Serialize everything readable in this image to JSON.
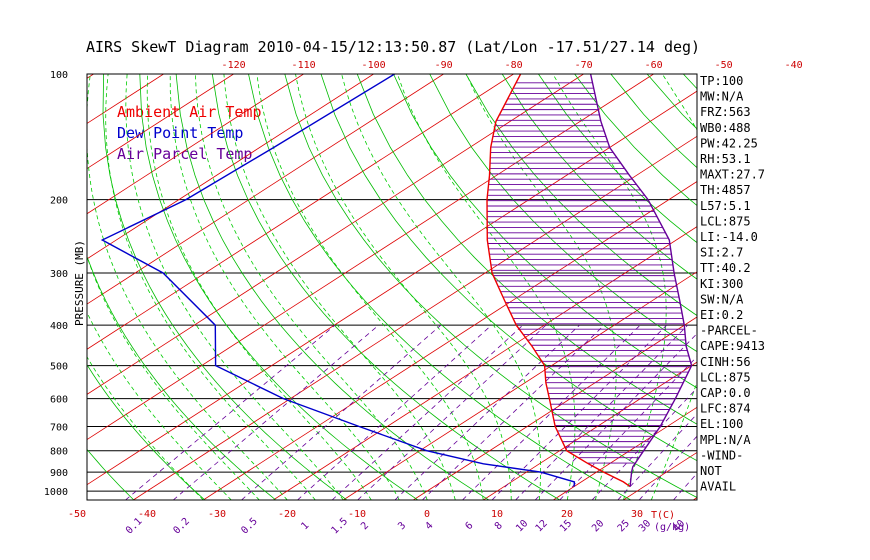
{
  "title": "AIRS SkewT Diagram 2010-04-15/12:13:50.87 (Lat/Lon -17.51/27.14 deg)",
  "ylabel": "PRESSURE (MB)",
  "legend": [
    {
      "label": "Ambient Air Temp",
      "color": "#ee0000"
    },
    {
      "label": "Dew Point Temp",
      "color": "#0000cc"
    },
    {
      "label": "Air Parcel Temp",
      "color": "#660099"
    }
  ],
  "indices": [
    "TP:100",
    "MW:N/A",
    "FRZ:563",
    "WB0:488",
    "PW:42.25",
    "RH:53.1",
    "MAXT:27.7",
    "TH:4857",
    "L57:5.1",
    "LCL:875",
    "LI:-14.0",
    "SI:2.7",
    "TT:40.2",
    "KI:300",
    "SW:N/A",
    "EI:0.2",
    "-PARCEL-",
    "CAPE:9413",
    "CINH:56",
    "LCL:875",
    "CAP:0.0",
    "LFC:874",
    "EL:100",
    "MPL:N/A",
    "-WIND-",
    "NOT",
    "AVAIL"
  ],
  "colors": {
    "temp": "#ee0000",
    "dew": "#0000cc",
    "parcel": "#660099",
    "isotherm": "#dd0000",
    "dryadiabat": "#00bb00",
    "moistadiabat": "#00cc00",
    "mixratio": "#660099",
    "isobar": "#000000"
  },
  "chart_data": {
    "type": "line",
    "title": "AIRS SkewT Diagram 2010-04-15/12:13:50.87 (Lat/Lon -17.51/27.14 deg)",
    "ylabel": "PRESSURE (MB)",
    "xlabel": "T(C)",
    "mixing_ratio_label": "(g/kg)",
    "y_scale": "log",
    "ylim": [
      1050,
      100
    ],
    "pressure_ticks": [
      "100",
      "200",
      "300",
      "400",
      "500",
      "600",
      "700",
      "800",
      "900",
      "1000"
    ],
    "bottom_temp_ticks": [
      "-50",
      "-40",
      "-30",
      "-20",
      "-10",
      "0",
      "10",
      "20",
      "30"
    ],
    "top_temp_ticks": [
      "-120",
      "-110",
      "-100",
      "-90",
      "-80",
      "-70",
      "-60",
      "-50",
      "-40"
    ],
    "mixing_ratio_ticks": [
      "0.1",
      "0.2",
      "0.5",
      "1",
      "1.5",
      "2",
      "3",
      "4",
      "6",
      "8",
      "10",
      "12",
      "15",
      "20",
      "25",
      "30",
      "40"
    ],
    "mixing_ratio_values": [
      0.1,
      0.2,
      0.5,
      1,
      1.5,
      2,
      3,
      4,
      6,
      8,
      10,
      12,
      15,
      20,
      25,
      30,
      40
    ],
    "series": [
      {
        "name": "Ambient Air Temp",
        "points": [
          {
            "p": 100,
            "t": -79
          },
          {
            "p": 130,
            "t": -72
          },
          {
            "p": 150,
            "t": -67
          },
          {
            "p": 175,
            "t": -61
          },
          {
            "p": 200,
            "t": -56
          },
          {
            "p": 250,
            "t": -47
          },
          {
            "p": 300,
            "t": -39
          },
          {
            "p": 350,
            "t": -31
          },
          {
            "p": 400,
            "t": -24
          },
          {
            "p": 450,
            "t": -17
          },
          {
            "p": 500,
            "t": -11
          },
          {
            "p": 550,
            "t": -7
          },
          {
            "p": 600,
            "t": -3
          },
          {
            "p": 700,
            "t": 4
          },
          {
            "p": 800,
            "t": 11
          },
          {
            "p": 860,
            "t": 17
          },
          {
            "p": 900,
            "t": 21
          },
          {
            "p": 950,
            "t": 26
          },
          {
            "p": 975,
            "t": 28
          }
        ]
      },
      {
        "name": "Dew Point Temp",
        "points": [
          {
            "p": 100,
            "t": -97
          },
          {
            "p": 150,
            "t": -98
          },
          {
            "p": 200,
            "t": -99
          },
          {
            "p": 250,
            "t": -102
          },
          {
            "p": 300,
            "t": -86
          },
          {
            "p": 400,
            "t": -67
          },
          {
            "p": 500,
            "t": -58
          },
          {
            "p": 600,
            "t": -41
          },
          {
            "p": 700,
            "t": -24
          },
          {
            "p": 800,
            "t": -9
          },
          {
            "p": 860,
            "t": 2
          },
          {
            "p": 900,
            "t": 12
          },
          {
            "p": 950,
            "t": 19
          },
          {
            "p": 975,
            "t": 20
          }
        ]
      },
      {
        "name": "Air Parcel Temp",
        "points": [
          {
            "p": 100,
            "t": -69
          },
          {
            "p": 130,
            "t": -57
          },
          {
            "p": 150,
            "t": -50
          },
          {
            "p": 175,
            "t": -41
          },
          {
            "p": 200,
            "t": -33
          },
          {
            "p": 250,
            "t": -21
          },
          {
            "p": 300,
            "t": -13
          },
          {
            "p": 350,
            "t": -6
          },
          {
            "p": 400,
            "t": 0
          },
          {
            "p": 450,
            "t": 5
          },
          {
            "p": 500,
            "t": 10
          },
          {
            "p": 600,
            "t": 15
          },
          {
            "p": 700,
            "t": 19
          },
          {
            "p": 800,
            "t": 22
          },
          {
            "p": 874,
            "t": 24
          },
          {
            "p": 900,
            "t": 25
          },
          {
            "p": 975,
            "t": 28
          }
        ]
      }
    ]
  }
}
